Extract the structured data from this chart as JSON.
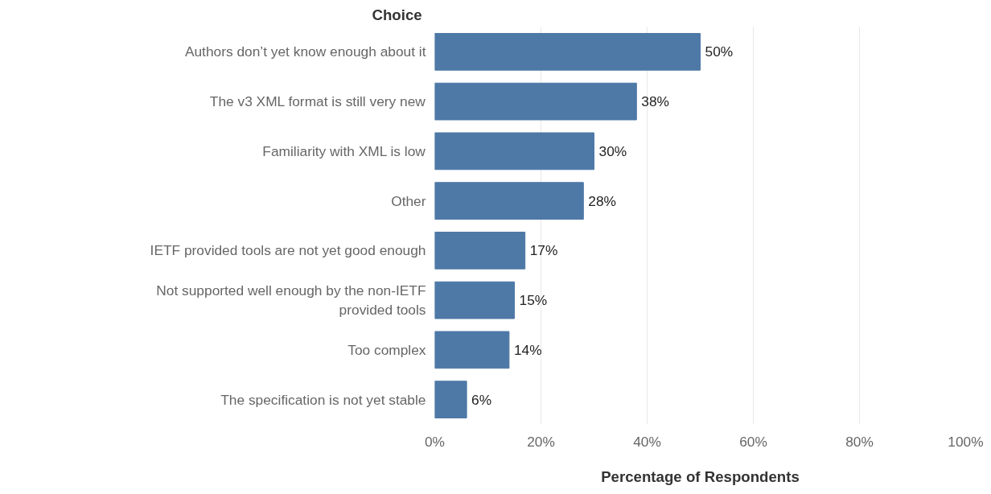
{
  "chart_data": {
    "type": "bar",
    "orientation": "horizontal",
    "ylabel": "Choice",
    "xlabel": "Percentage of Respondents",
    "categories": [
      "Authors don’t yet know enough about it",
      "The v3 XML format is still very new",
      "Familiarity with XML is low",
      "Other",
      "IETF provided tools are not yet good enough",
      "Not supported well enough by the non-IETF provided tools",
      "Too complex",
      "The specification is not yet stable"
    ],
    "values": [
      50,
      38,
      30,
      28,
      17,
      15,
      14,
      6
    ],
    "value_labels": [
      "50%",
      "38%",
      "30%",
      "28%",
      "17%",
      "15%",
      "14%",
      "6%"
    ],
    "color": "#4e79a7",
    "xlim": [
      0,
      100
    ],
    "xticks": [
      {
        "value": 0,
        "label": "0%"
      },
      {
        "value": 20,
        "label": "20%"
      },
      {
        "value": 40,
        "label": "40%"
      },
      {
        "value": 60,
        "label": "60%"
      },
      {
        "value": 80,
        "label": "80%"
      },
      {
        "value": 100,
        "label": "100%"
      }
    ],
    "grid": "x"
  }
}
